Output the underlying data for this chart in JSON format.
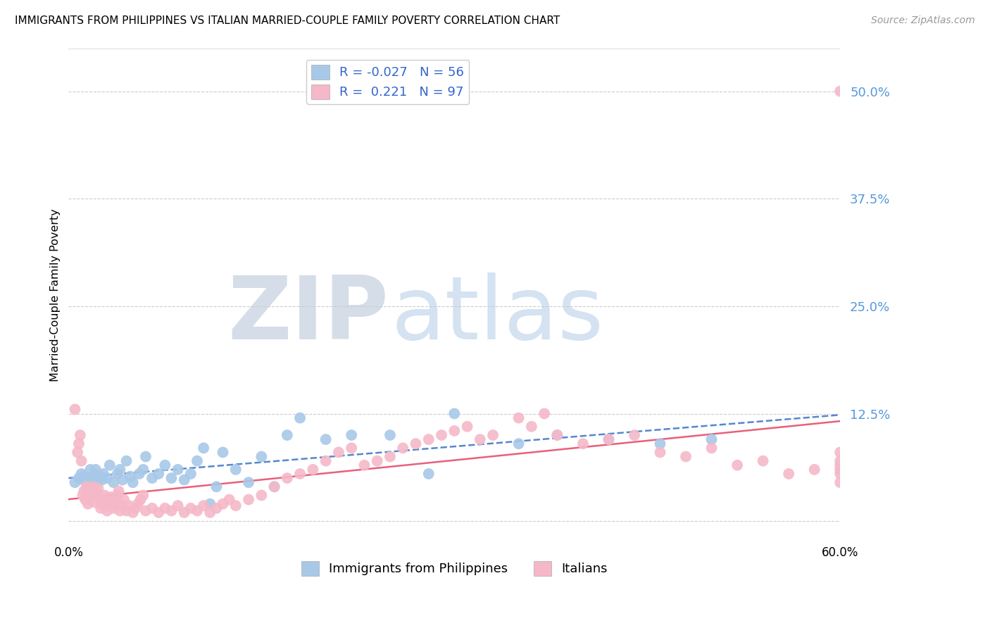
{
  "title": "IMMIGRANTS FROM PHILIPPINES VS ITALIAN MARRIED-COUPLE FAMILY POVERTY CORRELATION CHART",
  "source": "Source: ZipAtlas.com",
  "ylabel_ticks": [
    0.0,
    0.125,
    0.25,
    0.375,
    0.5
  ],
  "ylabel_tick_labels": [
    "",
    "12.5%",
    "25.0%",
    "37.5%",
    "50.0%"
  ],
  "ylabel_label": "Married-Couple Family Poverty",
  "xlabel_label_left": "Immigrants from Philippines",
  "xlabel_label_right": "Italians",
  "xmin": 0.0,
  "xmax": 0.6,
  "ymin": -0.025,
  "ymax": 0.55,
  "blue_color": "#a8c8e8",
  "pink_color": "#f5b8c8",
  "blue_line_color": "#5588cc",
  "pink_line_color": "#e8607a",
  "blue_R": -0.027,
  "blue_N": 56,
  "pink_R": 0.221,
  "pink_N": 97,
  "watermark_zip": "ZIP",
  "watermark_atlas": "atlas",
  "legend_label_color": "#3366cc",
  "tick_label_color": "#5599dd",
  "blue_x": [
    0.005,
    0.008,
    0.01,
    0.011,
    0.012,
    0.015,
    0.016,
    0.017,
    0.018,
    0.019,
    0.02,
    0.021,
    0.022,
    0.025,
    0.026,
    0.027,
    0.03,
    0.032,
    0.035,
    0.038,
    0.04,
    0.042,
    0.045,
    0.048,
    0.05,
    0.055,
    0.058,
    0.06,
    0.065,
    0.07,
    0.075,
    0.08,
    0.085,
    0.09,
    0.095,
    0.1,
    0.105,
    0.11,
    0.115,
    0.12,
    0.13,
    0.14,
    0.15,
    0.16,
    0.17,
    0.18,
    0.2,
    0.22,
    0.25,
    0.28,
    0.3,
    0.35,
    0.38,
    0.42,
    0.46,
    0.5
  ],
  "blue_y": [
    0.045,
    0.05,
    0.055,
    0.048,
    0.052,
    0.045,
    0.05,
    0.06,
    0.048,
    0.052,
    0.055,
    0.06,
    0.045,
    0.052,
    0.048,
    0.055,
    0.05,
    0.065,
    0.045,
    0.055,
    0.06,
    0.048,
    0.07,
    0.052,
    0.045,
    0.055,
    0.06,
    0.075,
    0.05,
    0.055,
    0.065,
    0.05,
    0.06,
    0.048,
    0.055,
    0.07,
    0.085,
    0.02,
    0.04,
    0.08,
    0.06,
    0.045,
    0.075,
    0.04,
    0.1,
    0.12,
    0.095,
    0.1,
    0.1,
    0.055,
    0.125,
    0.09,
    0.1,
    0.095,
    0.09,
    0.095
  ],
  "pink_x": [
    0.005,
    0.007,
    0.008,
    0.009,
    0.01,
    0.011,
    0.012,
    0.013,
    0.014,
    0.015,
    0.016,
    0.017,
    0.018,
    0.019,
    0.02,
    0.021,
    0.022,
    0.023,
    0.025,
    0.026,
    0.027,
    0.028,
    0.03,
    0.031,
    0.032,
    0.033,
    0.035,
    0.036,
    0.037,
    0.038,
    0.039,
    0.04,
    0.041,
    0.043,
    0.045,
    0.047,
    0.05,
    0.052,
    0.054,
    0.056,
    0.058,
    0.06,
    0.065,
    0.07,
    0.075,
    0.08,
    0.085,
    0.09,
    0.095,
    0.1,
    0.105,
    0.11,
    0.115,
    0.12,
    0.125,
    0.13,
    0.14,
    0.15,
    0.16,
    0.17,
    0.18,
    0.19,
    0.2,
    0.21,
    0.22,
    0.23,
    0.24,
    0.25,
    0.26,
    0.27,
    0.28,
    0.29,
    0.3,
    0.31,
    0.32,
    0.33,
    0.35,
    0.36,
    0.37,
    0.38,
    0.4,
    0.42,
    0.44,
    0.46,
    0.48,
    0.5,
    0.52,
    0.54,
    0.56,
    0.58,
    0.6,
    0.6,
    0.6,
    0.6,
    0.6,
    0.6,
    0.6
  ],
  "pink_y": [
    0.13,
    0.08,
    0.09,
    0.1,
    0.07,
    0.03,
    0.035,
    0.025,
    0.04,
    0.02,
    0.025,
    0.03,
    0.035,
    0.04,
    0.022,
    0.028,
    0.033,
    0.038,
    0.015,
    0.02,
    0.025,
    0.03,
    0.012,
    0.018,
    0.022,
    0.028,
    0.015,
    0.02,
    0.025,
    0.03,
    0.035,
    0.012,
    0.018,
    0.025,
    0.012,
    0.018,
    0.01,
    0.015,
    0.02,
    0.025,
    0.03,
    0.012,
    0.015,
    0.01,
    0.015,
    0.012,
    0.018,
    0.01,
    0.015,
    0.012,
    0.018,
    0.01,
    0.015,
    0.02,
    0.025,
    0.018,
    0.025,
    0.03,
    0.04,
    0.05,
    0.055,
    0.06,
    0.07,
    0.08,
    0.085,
    0.065,
    0.07,
    0.075,
    0.085,
    0.09,
    0.095,
    0.1,
    0.105,
    0.11,
    0.095,
    0.1,
    0.12,
    0.11,
    0.125,
    0.1,
    0.09,
    0.095,
    0.1,
    0.08,
    0.075,
    0.085,
    0.065,
    0.07,
    0.055,
    0.06,
    0.5,
    0.07,
    0.08,
    0.06,
    0.065,
    0.055,
    0.045
  ]
}
